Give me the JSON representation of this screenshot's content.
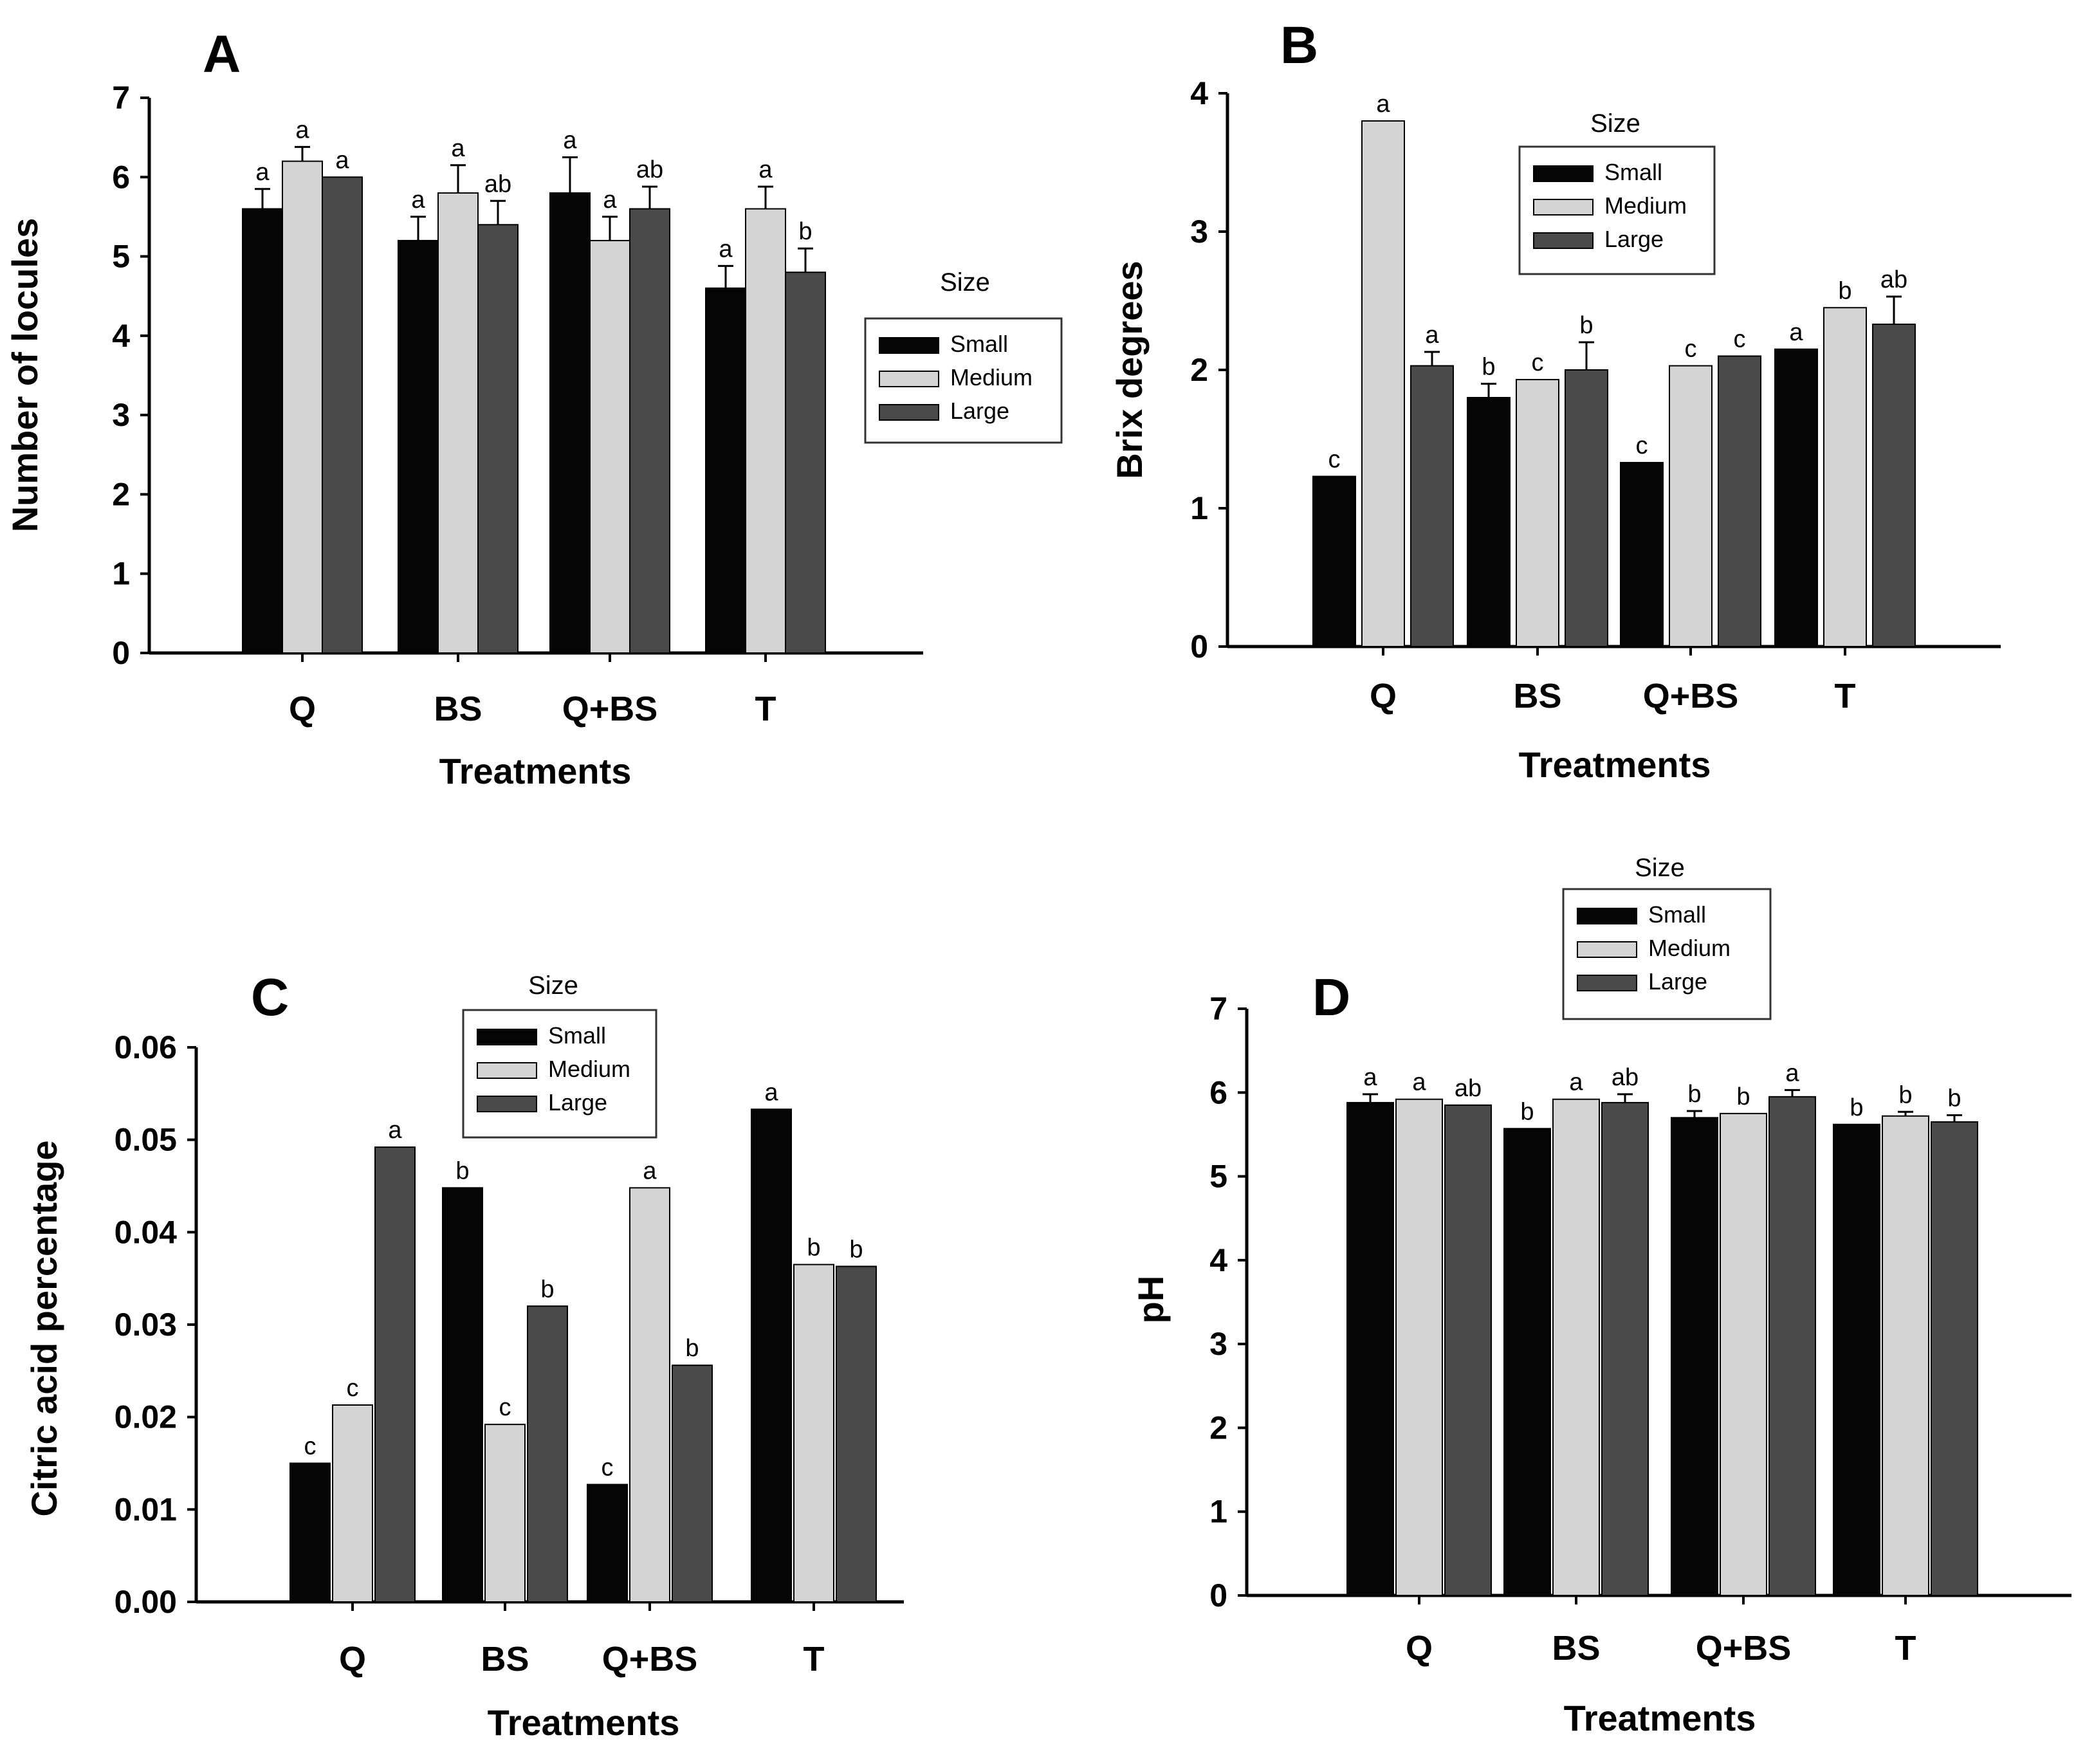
{
  "series_names": [
    "Small",
    "Medium",
    "Large"
  ],
  "series_colors": [
    "#050505",
    "#d4d4d4",
    "#4a4a4a"
  ],
  "legend_title": "Size",
  "chart_data": [
    {
      "panel": "A",
      "type": "bar",
      "categories": [
        "Q",
        "BS",
        "Q+BS",
        "T"
      ],
      "xlabel": "Treatments",
      "ylabel": "Number of locules",
      "ylim": [
        0,
        7
      ],
      "yticks": [
        "0",
        "1",
        "2",
        "3",
        "4",
        "5",
        "6",
        "7"
      ],
      "legend_title": "Size",
      "series": [
        {
          "name": "Small",
          "values": [
            5.6,
            5.2,
            5.8,
            4.6
          ],
          "errors": [
            0.25,
            0.3,
            0.45,
            0.28
          ],
          "labels": [
            "a",
            "a",
            "a",
            "a"
          ]
        },
        {
          "name": "Medium",
          "values": [
            6.2,
            5.8,
            5.2,
            5.6
          ],
          "errors": [
            0.18,
            0.35,
            0.3,
            0.28
          ],
          "labels": [
            "a",
            "a",
            "a",
            "a"
          ]
        },
        {
          "name": "Large",
          "values": [
            6.0,
            5.4,
            5.6,
            4.8
          ],
          "errors": [
            0.0,
            0.3,
            0.28,
            0.3
          ],
          "labels": [
            "a",
            "ab",
            "ab",
            "b"
          ]
        }
      ]
    },
    {
      "panel": "B",
      "type": "bar",
      "categories": [
        "Q",
        "BS",
        "Q+BS",
        "T"
      ],
      "xlabel": "Treatments",
      "ylabel": "Brix degrees",
      "ylim": [
        0,
        4
      ],
      "yticks": [
        "0",
        "1",
        "2",
        "3",
        "4"
      ],
      "legend_title": "Size",
      "series": [
        {
          "name": "Small",
          "values": [
            1.23,
            1.8,
            1.33,
            2.15
          ],
          "errors": [
            0.0,
            0.1,
            0.0,
            0.0
          ],
          "labels": [
            "c",
            "b",
            "c",
            "a"
          ]
        },
        {
          "name": "Medium",
          "values": [
            3.8,
            1.93,
            2.03,
            2.45
          ],
          "errors": [
            0.0,
            0.0,
            0.0,
            0.0
          ],
          "labels": [
            "a",
            "c",
            "c",
            "b"
          ]
        },
        {
          "name": "Large",
          "values": [
            2.03,
            2.0,
            2.1,
            2.33
          ],
          "errors": [
            0.1,
            0.2,
            0.0,
            0.2
          ],
          "labels": [
            "a",
            "b",
            "c",
            "ab"
          ]
        }
      ]
    },
    {
      "panel": "C",
      "type": "bar",
      "categories": [
        "Q",
        "BS",
        "Q+BS",
        "T"
      ],
      "xlabel": "Treatments",
      "ylabel": "Citric acid percentage",
      "ylim": [
        0,
        0.06
      ],
      "yticks": [
        "0.00",
        "0.01",
        "0.02",
        "0.03",
        "0.04",
        "0.05",
        "0.06"
      ],
      "legend_title": "Size",
      "series": [
        {
          "name": "Small",
          "values": [
            0.015,
            0.0448,
            0.0127,
            0.0533
          ],
          "errors": [
            0,
            0,
            0,
            0
          ],
          "labels": [
            "c",
            "b",
            "c",
            "a"
          ]
        },
        {
          "name": "Medium",
          "values": [
            0.0213,
            0.0192,
            0.0448,
            0.0365
          ],
          "errors": [
            0,
            0,
            0,
            0
          ],
          "labels": [
            "c",
            "c",
            "a",
            "b"
          ]
        },
        {
          "name": "Large",
          "values": [
            0.0492,
            0.032,
            0.0256,
            0.0363
          ],
          "errors": [
            0,
            0,
            0,
            0
          ],
          "labels": [
            "a",
            "b",
            "b",
            "b"
          ]
        }
      ]
    },
    {
      "panel": "D",
      "type": "bar",
      "categories": [
        "Q",
        "BS",
        "Q+BS",
        "T"
      ],
      "xlabel": "Treatments",
      "ylabel": "pH",
      "ylim": [
        0,
        7
      ],
      "yticks": [
        "0",
        "1",
        "2",
        "3",
        "4",
        "5",
        "6",
        "7"
      ],
      "legend_title": "Size",
      "series": [
        {
          "name": "Small",
          "values": [
            5.88,
            5.57,
            5.7,
            5.62
          ],
          "errors": [
            0.1,
            0.0,
            0.08,
            0.0
          ],
          "labels": [
            "a",
            "b",
            "b",
            "b"
          ]
        },
        {
          "name": "Medium",
          "values": [
            5.92,
            5.92,
            5.75,
            5.72
          ],
          "errors": [
            0.0,
            0.0,
            0.0,
            0.05
          ],
          "labels": [
            "a",
            "a",
            "b",
            "b"
          ]
        },
        {
          "name": "Large",
          "values": [
            5.85,
            5.88,
            5.95,
            5.65
          ],
          "errors": [
            0.0,
            0.1,
            0.08,
            0.08
          ],
          "labels": [
            "ab",
            "ab",
            "a",
            "b"
          ]
        }
      ]
    }
  ]
}
